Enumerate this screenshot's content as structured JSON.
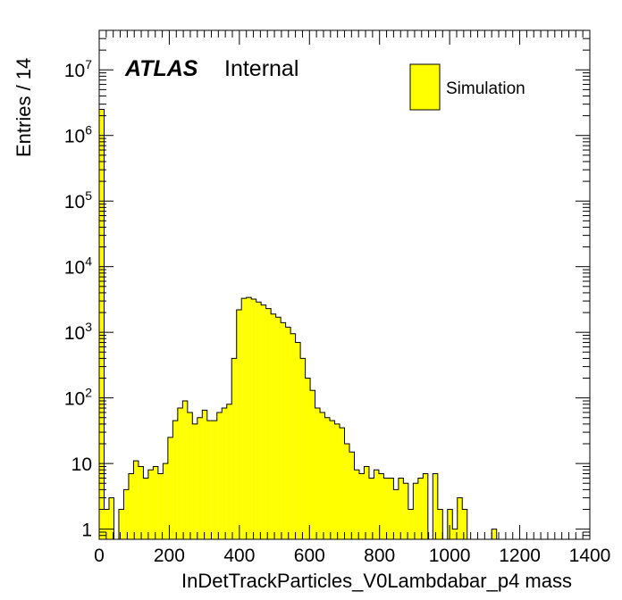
{
  "chart_data": {
    "type": "bar",
    "style": "histogram",
    "xlabel": "InDetTrackParticles_V0Lambdabar_p4 mass",
    "ylabel": "Entries / 14",
    "xlim": [
      0,
      1400
    ],
    "ylim": [
      0.7,
      40000000
    ],
    "log_y": true,
    "bin_width": 14,
    "x_ticks": [
      0,
      200,
      400,
      600,
      800,
      1000,
      1200,
      1400
    ],
    "y_ticks": [
      {
        "value": 1,
        "base": "1",
        "exp": ""
      },
      {
        "value": 10,
        "base": "10",
        "exp": ""
      },
      {
        "value": 100,
        "base": "10",
        "exp": "2"
      },
      {
        "value": 1000,
        "base": "10",
        "exp": "3"
      },
      {
        "value": 10000,
        "base": "10",
        "exp": "4"
      },
      {
        "value": 100000,
        "base": "10",
        "exp": "5"
      },
      {
        "value": 1000000,
        "base": "10",
        "exp": "6"
      },
      {
        "value": 10000000,
        "base": "10",
        "exp": "7"
      }
    ],
    "fill_color": "#ffff00",
    "line_color": "#000000",
    "series": [
      {
        "name": "Simulation",
        "bin_edges_start": 0,
        "values": [
          2500000,
          2,
          3,
          0,
          2,
          4,
          7,
          11,
          9,
          6,
          8,
          9,
          7,
          10,
          25,
          45,
          70,
          90,
          60,
          40,
          50,
          65,
          45,
          45,
          60,
          70,
          80,
          400,
          2200,
          3300,
          3400,
          3200,
          2900,
          2600,
          2300,
          1900,
          1700,
          1400,
          1200,
          950,
          700,
          400,
          200,
          130,
          70,
          60,
          50,
          45,
          40,
          35,
          20,
          15,
          8,
          7,
          9,
          6,
          8,
          7,
          6,
          6,
          4,
          6,
          5,
          2,
          5,
          6,
          7,
          0,
          7,
          2,
          0,
          2,
          1,
          3,
          2,
          0,
          0,
          0,
          0,
          0,
          1,
          0,
          0,
          0,
          0,
          0,
          0,
          0,
          0,
          0,
          0,
          0,
          0,
          0,
          0,
          0,
          0,
          0,
          0,
          0
        ]
      }
    ],
    "legend": {
      "entries": [
        "Simulation"
      ],
      "position": "top-right"
    },
    "annotations": {
      "atlas": "ATLAS",
      "internal": "Internal"
    }
  }
}
